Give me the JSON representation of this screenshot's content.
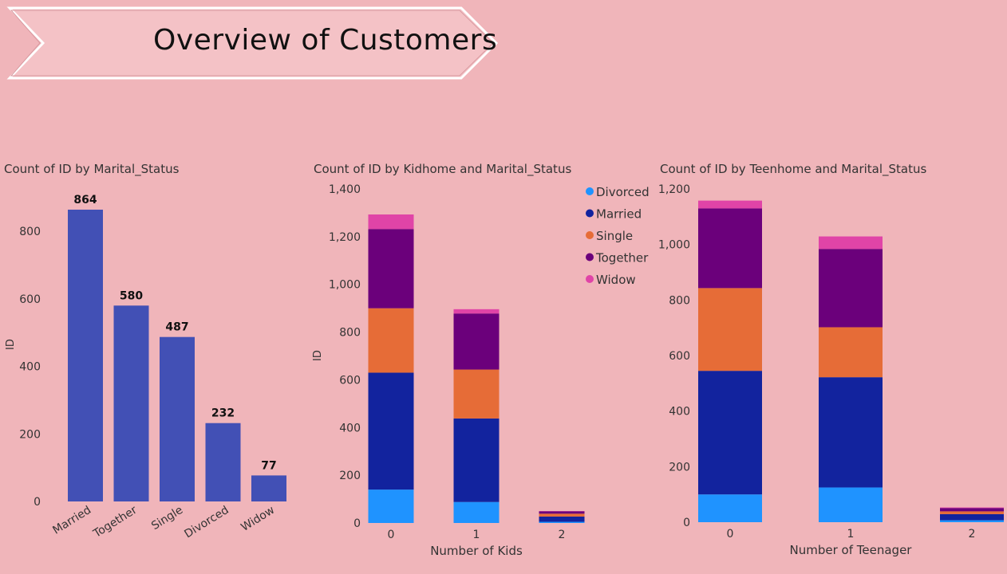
{
  "page": {
    "title": "Overview of Customers"
  },
  "colors": {
    "background": "#f0b5ba",
    "bar": "#4250b5",
    "Divorced": "#1f93ff",
    "Married": "#12239e",
    "Single": "#e66c37",
    "Together": "#6b007b",
    "Widow": "#e044a7"
  },
  "chart_data": [
    {
      "type": "bar",
      "title": "Count of ID by Marital_Status",
      "xlabel": "",
      "ylabel": "ID",
      "categories": [
        "Married",
        "Together",
        "Single",
        "Divorced",
        "Widow"
      ],
      "values": [
        864,
        580,
        487,
        232,
        77
      ],
      "y_ticks": [
        0,
        200,
        400,
        600,
        800
      ],
      "ylim": [
        0,
        900
      ],
      "data_labels": true,
      "grid": false
    },
    {
      "type": "bar",
      "stacked": true,
      "title": "Count of ID by Kidhome and Marital_Status",
      "xlabel": "Number of Kids",
      "ylabel": "ID",
      "categories": [
        "0",
        "1",
        "2"
      ],
      "y_ticks": [
        0,
        200,
        400,
        600,
        800,
        1000,
        1200,
        1400
      ],
      "ylim": [
        0,
        1400
      ],
      "legend": "top-right",
      "series": [
        {
          "name": "Divorced",
          "values": [
            140,
            88,
            5
          ]
        },
        {
          "name": "Married",
          "values": [
            490,
            350,
            22
          ]
        },
        {
          "name": "Single",
          "values": [
            270,
            205,
            12
          ]
        },
        {
          "name": "Together",
          "values": [
            332,
            235,
            10
          ]
        },
        {
          "name": "Widow",
          "values": [
            61,
            18,
            1
          ]
        }
      ],
      "grid": false
    },
    {
      "type": "bar",
      "stacked": true,
      "title": "Count of ID by Teenhome and Marital_Status",
      "xlabel": "Number of Teenager",
      "ylabel": "",
      "categories": [
        "0",
        "1",
        "2"
      ],
      "y_ticks": [
        0,
        200,
        400,
        600,
        800,
        1000,
        1200
      ],
      "ylim": [
        0,
        1200
      ],
      "series": [
        {
          "name": "Divorced",
          "values": [
            100,
            125,
            7
          ]
        },
        {
          "name": "Married",
          "values": [
            445,
            397,
            22
          ]
        },
        {
          "name": "Single",
          "values": [
            298,
            180,
            10
          ]
        },
        {
          "name": "Together",
          "values": [
            287,
            282,
            12
          ]
        },
        {
          "name": "Widow",
          "values": [
            28,
            45,
            2
          ]
        }
      ],
      "grid": false
    }
  ]
}
